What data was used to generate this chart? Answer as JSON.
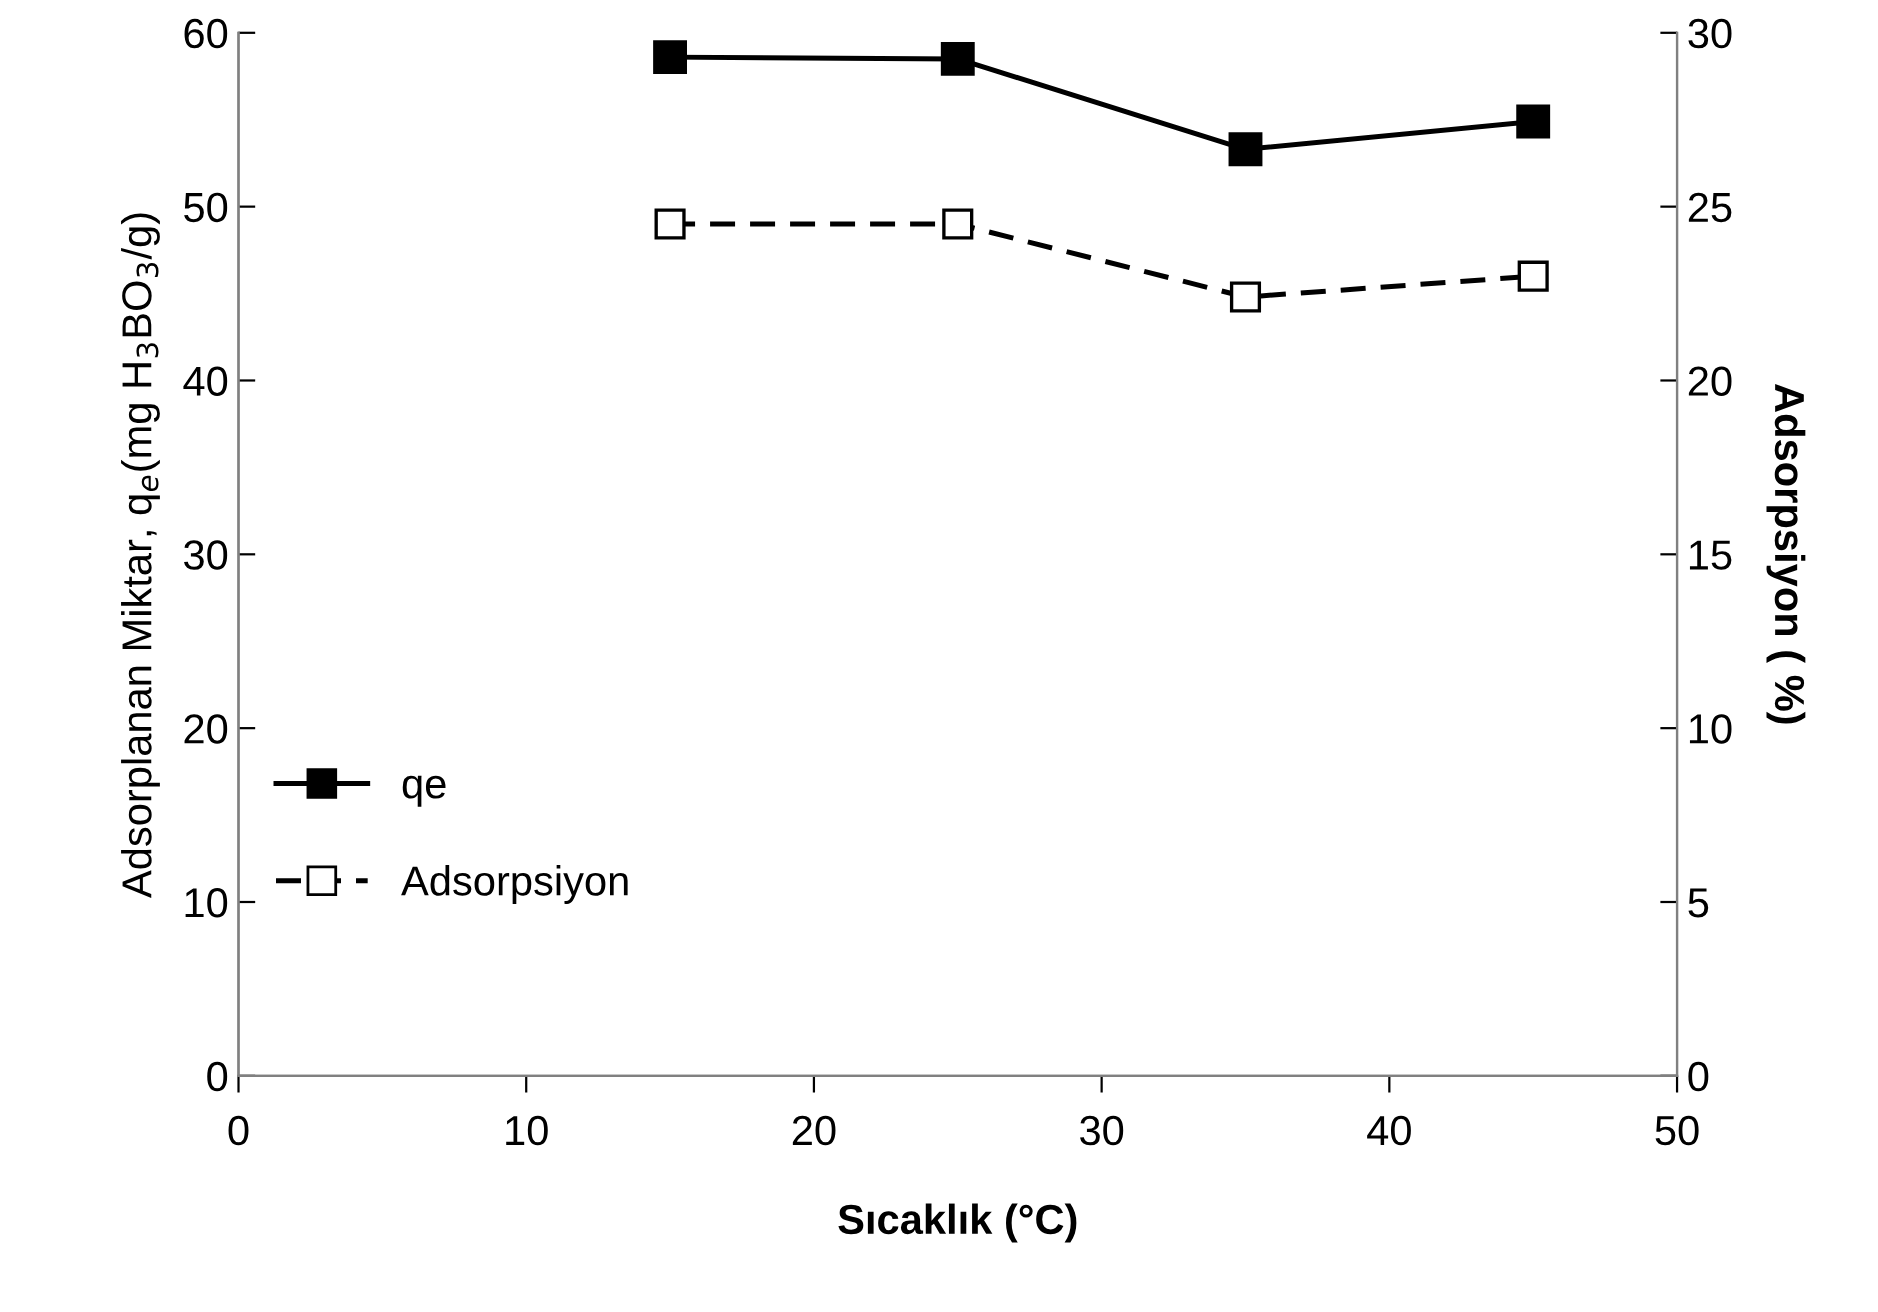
{
  "chart_data": {
    "type": "line",
    "xlabel": "Sıcaklık (°C)",
    "ylabel": "Adsorplanan Miktar, q$_{e}$(mg H$_{3}$BO$_{3}$/g)",
    "y2label": "Adsorpsiyon ( %)",
    "x": [
      15,
      25,
      35,
      45
    ],
    "series": [
      {
        "name": "qe",
        "color": "#000000",
        "values": [
          58.6,
          58.5,
          53.3,
          54.9
        ],
        "marker": "square",
        "line_style": "solid"
      },
      {
        "name": "Adsorpsiyon",
        "color": "#000000",
        "values": [
          24.5,
          24.5,
          22.4,
          23.0
        ],
        "marker": "square",
        "line_style": "dashed",
        "axis": "y2"
      }
    ],
    "xlim": [
      0,
      50
    ],
    "xticks": [
      0,
      10,
      20,
      30,
      40,
      50
    ],
    "ylim": [
      0,
      60
    ],
    "yticks": [
      0,
      10,
      20,
      30,
      40,
      50,
      60
    ],
    "y2lim": [
      0,
      30
    ],
    "y2ticks": [
      0,
      5,
      10,
      15,
      20,
      25,
      30
    ],
    "grid": false,
    "legend": "left"
  }
}
